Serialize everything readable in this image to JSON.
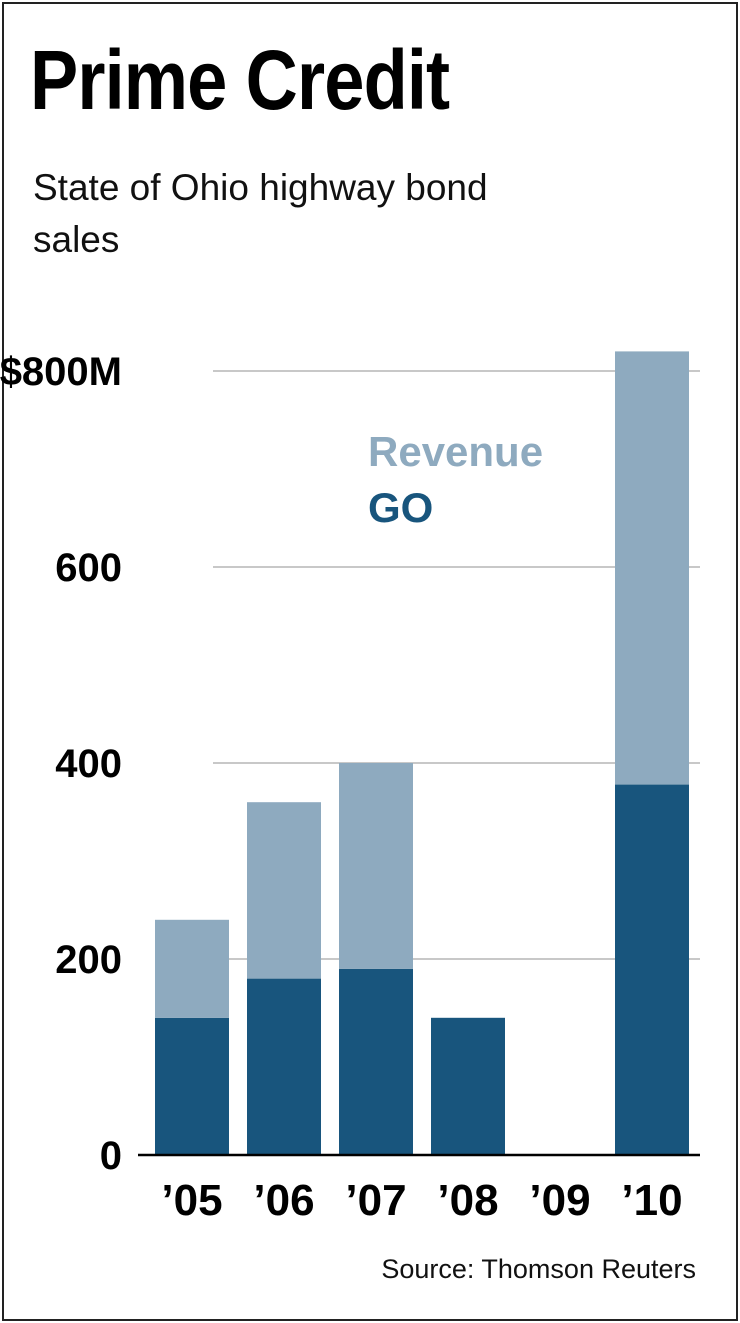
{
  "title": "Prime Credit",
  "subtitle": "State of Ohio highway bond sales",
  "source": "Source: Thomson Reuters",
  "chart_data": {
    "type": "bar",
    "stacked": true,
    "categories": [
      "’05",
      "’06",
      "’07",
      "’08",
      "’09",
      "’10"
    ],
    "series": [
      {
        "name": "GO",
        "color": "#18557d",
        "values": [
          140,
          180,
          190,
          140,
          0,
          378
        ]
      },
      {
        "name": "Revenue",
        "color": "#8eaabf",
        "values": [
          100,
          180,
          210,
          0,
          0,
          442
        ]
      }
    ],
    "ylim": [
      0,
      820
    ],
    "yticks": [
      0,
      200,
      400,
      600,
      800
    ],
    "ytick_labels": [
      "0",
      "200",
      "400",
      "600",
      "$800M"
    ],
    "grid": true,
    "legend_placement": "top-center"
  }
}
